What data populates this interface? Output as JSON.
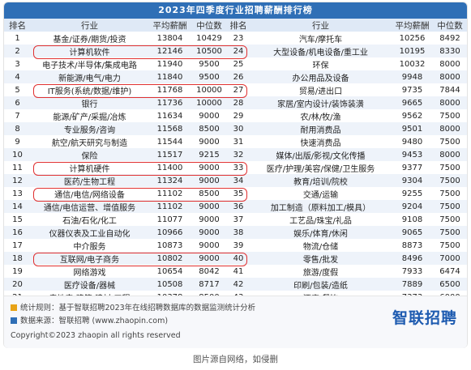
{
  "title": "2023年四季度行业招聘薪酬排行榜",
  "headers": [
    "排名",
    "行业",
    "平均薪酬",
    "中位数",
    "排名",
    "行业",
    "平均薪酬",
    "中位数"
  ],
  "rows": [
    [
      1,
      "基金/证券/期货/投资",
      13804,
      10429,
      23,
      "汽车/摩托车",
      10256,
      8492
    ],
    [
      2,
      "计算机软件",
      12146,
      10500,
      24,
      "大型设备/机电设备/重工业",
      10195,
      8330
    ],
    [
      3,
      "电子技术/半导体/集成电路",
      11940,
      9500,
      25,
      "环保",
      10032,
      8000
    ],
    [
      4,
      "新能源/电气/电力",
      11840,
      9500,
      26,
      "办公用品及设备",
      9948,
      8000
    ],
    [
      5,
      "IT服务(系统/数据/维护)",
      11768,
      10000,
      27,
      "贸易/进出口",
      9735,
      7844
    ],
    [
      6,
      "银行",
      11736,
      10000,
      28,
      "家居/室内设计/装饰装潢",
      9665,
      8000
    ],
    [
      7,
      "能源/矿产/采掘/冶炼",
      11634,
      9000,
      29,
      "农/林/牧/渔",
      9562,
      7500
    ],
    [
      8,
      "专业服务/咨询",
      11568,
      8500,
      30,
      "耐用消费品",
      9501,
      8000
    ],
    [
      9,
      "航空/航天研究与制造",
      11544,
      9000,
      31,
      "快速消费品",
      9480,
      7500
    ],
    [
      10,
      "保险",
      11517,
      9215,
      32,
      "媒体/出版/影视/文化传播",
      9453,
      8000
    ],
    [
      11,
      "计算机硬件",
      11400,
      9000,
      33,
      "医疗/护理/美容/保健/卫生服务",
      9377,
      7500
    ],
    [
      12,
      "医药/生物工程",
      11324,
      9000,
      34,
      "教育/培训/院校",
      9304,
      7500
    ],
    [
      13,
      "通信/电信/网络设备",
      11102,
      8500,
      35,
      "交通/运输",
      9255,
      7500
    ],
    [
      14,
      "通信/电信运营、增值服务",
      11102,
      9000,
      36,
      "加工制造（原料加工/模具）",
      9204,
      7500
    ],
    [
      15,
      "石油/石化/化工",
      11077,
      9000,
      37,
      "工艺品/珠宝/礼品",
      9108,
      7500
    ],
    [
      16,
      "仪器仪表及工业自动化",
      10966,
      9000,
      38,
      "娱乐/体育/休闲",
      9065,
      7500
    ],
    [
      17,
      "中介服务",
      10873,
      9000,
      39,
      "物流/仓储",
      8873,
      7500
    ],
    [
      18,
      "互联网/电子商务",
      10802,
      9000,
      40,
      "零售/批发",
      8496,
      7000
    ],
    [
      19,
      "网络游戏",
      10654,
      8042,
      41,
      "旅游/度假",
      7933,
      6474
    ],
    [
      20,
      "医疗设备/器械",
      10508,
      8717,
      42,
      "印刷/包装/造纸",
      7889,
      6500
    ],
    [
      21,
      "房地产/建筑/建材/工程",
      10378,
      8500,
      43,
      "酒店/餐饮",
      7373,
      6000
    ],
    [
      22,
      "检验/检测/认证",
      10262,
      8425,
      44,
      "物业管理/商业中心",
      7360,
      6000
    ]
  ],
  "notes": {
    "stat": "统计规则：基于智联招聘2023年在线招聘数据库的数据监测统计分析",
    "source": "数据来源：智联招聘 (www.zhaopin.com)",
    "copyright": "Copyright©2023 zhaopin all rights reserved"
  },
  "logo": "智联招聘",
  "caption": "图片源自网络，如侵删",
  "colors": {
    "title_bg": "#2f6fb6",
    "highlight": "#e03030",
    "stripe": "#eef3fa",
    "logo": "#1e5bb0"
  },
  "highlighted_ranks": [
    2,
    5,
    11,
    13,
    18
  ]
}
